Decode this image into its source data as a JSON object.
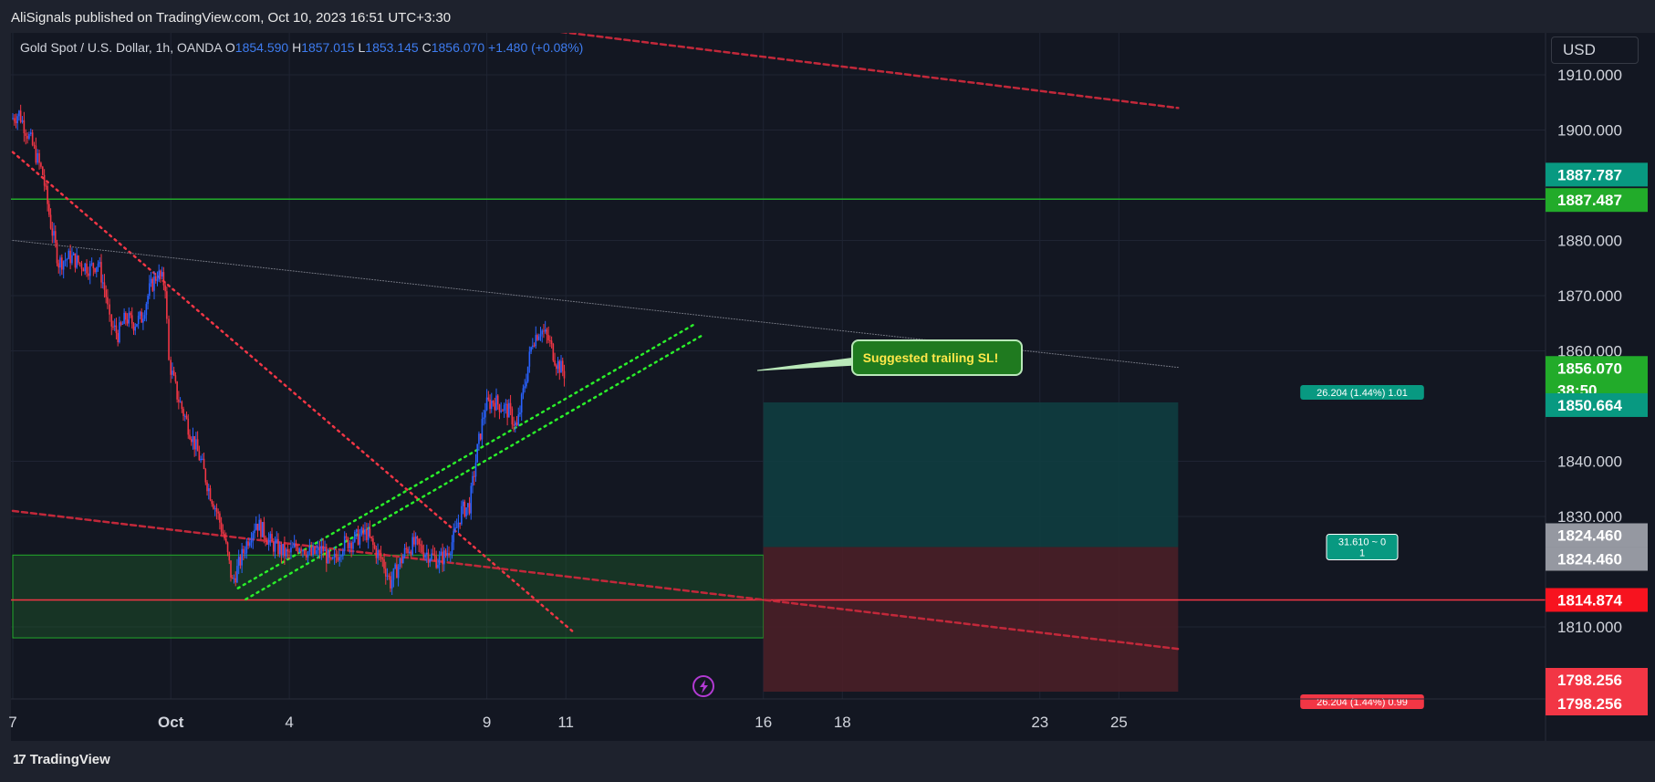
{
  "header": {
    "published": "AliSignals published on TradingView.com, Oct 10, 2023 16:51 UTC+3:30"
  },
  "legend": {
    "symbol": "Gold Spot / U.S. Dollar, 1h, OANDA",
    "o_label": "O",
    "o": "1854.590",
    "h_label": "H",
    "h": "1857.015",
    "l_label": "L",
    "l": "1853.145",
    "c_label": "C",
    "c": "1856.070",
    "change": "+1.480 (+0.08%)"
  },
  "currency": "USD",
  "footer": {
    "brand": "TradingView"
  },
  "chart_data": {
    "type": "candlestick",
    "symbol": "XAUUSD",
    "interval": "1h",
    "ylim": [
      1790,
      1914
    ],
    "y_ticks": [
      "1910.000",
      "1900.000",
      "1880.000",
      "1870.000",
      "1860.000",
      "1840.000",
      "1830.000",
      "1810.000"
    ],
    "x_ticks": [
      {
        "label": "7",
        "day": -3
      },
      {
        "label": "Oct",
        "day": 1
      },
      {
        "label": "4",
        "day": 4
      },
      {
        "label": "9",
        "day": 9
      },
      {
        "label": "11",
        "day": 11
      },
      {
        "label": "16",
        "day": 16
      },
      {
        "label": "18",
        "day": 18
      },
      {
        "label": "23",
        "day": 23
      },
      {
        "label": "25",
        "day": 25
      }
    ],
    "price_path": [
      [
        -3.0,
        1902
      ],
      [
        -2.8,
        1903
      ],
      [
        -2.5,
        1898
      ],
      [
        -2.2,
        1892
      ],
      [
        -2.0,
        1883
      ],
      [
        -1.8,
        1876
      ],
      [
        -1.5,
        1877
      ],
      [
        -1.3,
        1876
      ],
      [
        -1.0,
        1875
      ],
      [
        -0.8,
        1876
      ],
      [
        -0.6,
        1870
      ],
      [
        -0.5,
        1865
      ],
      [
        -0.3,
        1863
      ],
      [
        -0.1,
        1866
      ],
      [
        0.1,
        1865
      ],
      [
        0.3,
        1866
      ],
      [
        0.5,
        1871
      ],
      [
        0.7,
        1874
      ],
      [
        0.9,
        1872
      ],
      [
        1.0,
        1858
      ],
      [
        1.2,
        1852
      ],
      [
        1.4,
        1848
      ],
      [
        1.6,
        1844
      ],
      [
        1.8,
        1840
      ],
      [
        2.0,
        1835
      ],
      [
        2.2,
        1831
      ],
      [
        2.4,
        1826
      ],
      [
        2.6,
        1818
      ],
      [
        2.8,
        1822
      ],
      [
        3.0,
        1826
      ],
      [
        3.2,
        1829
      ],
      [
        3.4,
        1827
      ],
      [
        3.6,
        1825
      ],
      [
        3.8,
        1824
      ],
      [
        4.0,
        1823
      ],
      [
        4.3,
        1825
      ],
      [
        4.6,
        1823
      ],
      [
        4.9,
        1824
      ],
      [
        5.1,
        1821
      ],
      [
        5.4,
        1825
      ],
      [
        5.7,
        1826
      ],
      [
        6.0,
        1827
      ],
      [
        6.2,
        1824
      ],
      [
        6.4,
        1822
      ],
      [
        6.6,
        1818
      ],
      [
        6.8,
        1821
      ],
      [
        7.0,
        1824
      ],
      [
        7.2,
        1825
      ],
      [
        7.4,
        1824
      ],
      [
        7.6,
        1823
      ],
      [
        7.8,
        1822
      ],
      [
        8.0,
        1823
      ],
      [
        8.2,
        1826
      ],
      [
        8.4,
        1831
      ],
      [
        8.6,
        1832
      ],
      [
        8.8,
        1842
      ],
      [
        9.0,
        1850
      ],
      [
        9.2,
        1851
      ],
      [
        9.4,
        1850
      ],
      [
        9.6,
        1849
      ],
      [
        9.8,
        1846
      ],
      [
        10.0,
        1854
      ],
      [
        10.2,
        1862
      ],
      [
        10.4,
        1864
      ],
      [
        10.6,
        1862
      ],
      [
        10.8,
        1858
      ],
      [
        11.0,
        1856
      ]
    ],
    "horizontal_lines": [
      {
        "price": 1887.487,
        "color": "#22ab2a"
      },
      {
        "price": 1814.874,
        "color": "#f23645"
      }
    ],
    "demand_zone": {
      "from": 1808,
      "to": 1823,
      "day_start": -3,
      "day_end": 16,
      "color": "#1f6b2c"
    },
    "trendlines": [
      {
        "from": [
          -3,
          1896
        ],
        "to": [
          11.2,
          1809
        ],
        "color": "#f23645",
        "style": "dotted"
      },
      {
        "from": [
          -3,
          1831
        ],
        "to": [
          26.5,
          1806
        ],
        "color": "#c2283a",
        "style": "dashed"
      },
      {
        "from": [
          9.5,
          1919
        ],
        "to": [
          26.5,
          1904
        ],
        "color": "#c2283a",
        "style": "dashed"
      },
      {
        "from": [
          -3,
          1880
        ],
        "to": [
          26.5,
          1857
        ],
        "color": "#787b86",
        "style": "dotted"
      },
      {
        "from": [
          2.7,
          1817
        ],
        "to": [
          14.3,
          1865
        ],
        "color": "#2aef2a",
        "style": "dotted"
      },
      {
        "from": [
          2.9,
          1815
        ],
        "to": [
          14.5,
          1863
        ],
        "color": "#2aef2a",
        "style": "dotted"
      }
    ],
    "position": {
      "entry": 1824.46,
      "target": 1850.664,
      "stop": 1798.256,
      "day_start": 16,
      "day_end": 26.5,
      "target_label": "26.204 (1.44%) 1.01",
      "stop_label": "26.204 (1.44%) 0.99",
      "center_label_line1": "31.610 ~ 0",
      "center_label_line2": "1"
    },
    "callout": {
      "text": "Suggested trailing SL!",
      "anchor": [
        12.4,
        1853
      ]
    },
    "price_labels": [
      {
        "text": "1887.787",
        "price": 1887.787,
        "bg": "#089981",
        "fg": "#ffffff"
      },
      {
        "text": "1887.487",
        "price": 1887.487,
        "bg": "#22ab2a",
        "fg": "#ffffff"
      },
      {
        "text": "1856.070",
        "sub": "38:50",
        "price": 1856.07,
        "bg": "#22ab2a",
        "fg": "#ffffff"
      },
      {
        "text": "1850.664",
        "price": 1850.664,
        "bg": "#089981",
        "fg": "#ffffff"
      },
      {
        "text": "1824.460",
        "price": 1824.46,
        "bg": "#9598a1",
        "fg": "#ffffff",
        "pos": "upper"
      },
      {
        "text": "1824.460",
        "price": 1824.46,
        "bg": "#9598a1",
        "fg": "#ffffff",
        "pos": "lower"
      },
      {
        "text": "1814.874",
        "price": 1814.874,
        "bg": "#f7131f",
        "fg": "#ffffff"
      },
      {
        "text": "1798.256",
        "price": 1798.256,
        "bg": "#f23645",
        "fg": "#ffffff",
        "pos": "upper"
      },
      {
        "text": "1798.256",
        "price": 1798.256,
        "bg": "#f23645",
        "fg": "#ffffff",
        "pos": "lower"
      }
    ],
    "colors": {
      "up": "#2962ff",
      "down": "#f23645",
      "background": "#131722",
      "grid": "#1f2433",
      "axis_text": "#d1d4dc"
    },
    "grid": true
  }
}
